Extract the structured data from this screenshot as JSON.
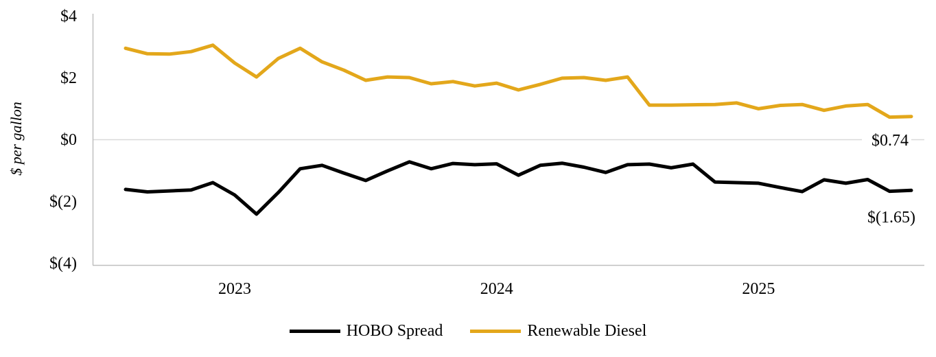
{
  "chart_data": {
    "type": "line",
    "title": "",
    "ylabel": "$ per gallon",
    "ylim": [
      -4,
      4
    ],
    "grid": "zero-line-only",
    "legend_position": "bottom",
    "y_ticks": [
      {
        "label": "$4",
        "value": 4
      },
      {
        "label": "$2",
        "value": 2
      },
      {
        "label": "$0",
        "value": 0
      },
      {
        "label": "$(2)",
        "value": -2
      },
      {
        "label": "$(4)",
        "value": -4
      }
    ],
    "x_year_ticks": [
      {
        "label": "2023",
        "index": 5
      },
      {
        "label": "2024",
        "index": 17
      },
      {
        "label": "2025",
        "index": 29
      }
    ],
    "series": [
      {
        "name": "HOBO Spread",
        "color": "#000000",
        "end_label": "$(1.65)",
        "values": [
          -1.62,
          -1.7,
          -1.67,
          -1.64,
          -1.4,
          -1.8,
          -2.42,
          -1.72,
          -0.95,
          -0.84,
          -1.09,
          -1.33,
          -1.02,
          -0.73,
          -0.95,
          -0.78,
          -0.82,
          -0.79,
          -1.16,
          -0.84,
          -0.77,
          -0.9,
          -1.07,
          -0.82,
          -0.8,
          -0.92,
          -0.8,
          -1.38,
          -1.4,
          -1.42,
          -1.56,
          -1.69,
          -1.31,
          -1.42,
          -1.3,
          -1.68,
          -1.65
        ]
      },
      {
        "name": "Renewable Diesel",
        "color": "#E3A71B",
        "end_label": "$0.74",
        "values": [
          2.95,
          2.77,
          2.76,
          2.84,
          3.05,
          2.47,
          2.02,
          2.62,
          2.95,
          2.51,
          2.24,
          1.91,
          2.02,
          2.0,
          1.8,
          1.87,
          1.73,
          1.82,
          1.6,
          1.78,
          1.98,
          2.0,
          1.91,
          2.02,
          1.11,
          1.11,
          1.12,
          1.13,
          1.18,
          0.99,
          1.1,
          1.13,
          0.94,
          1.08,
          1.13,
          0.72,
          0.74
        ]
      }
    ],
    "axis_color": "#BFBFBF",
    "zero_gridline_color": "#D9D9D9"
  }
}
